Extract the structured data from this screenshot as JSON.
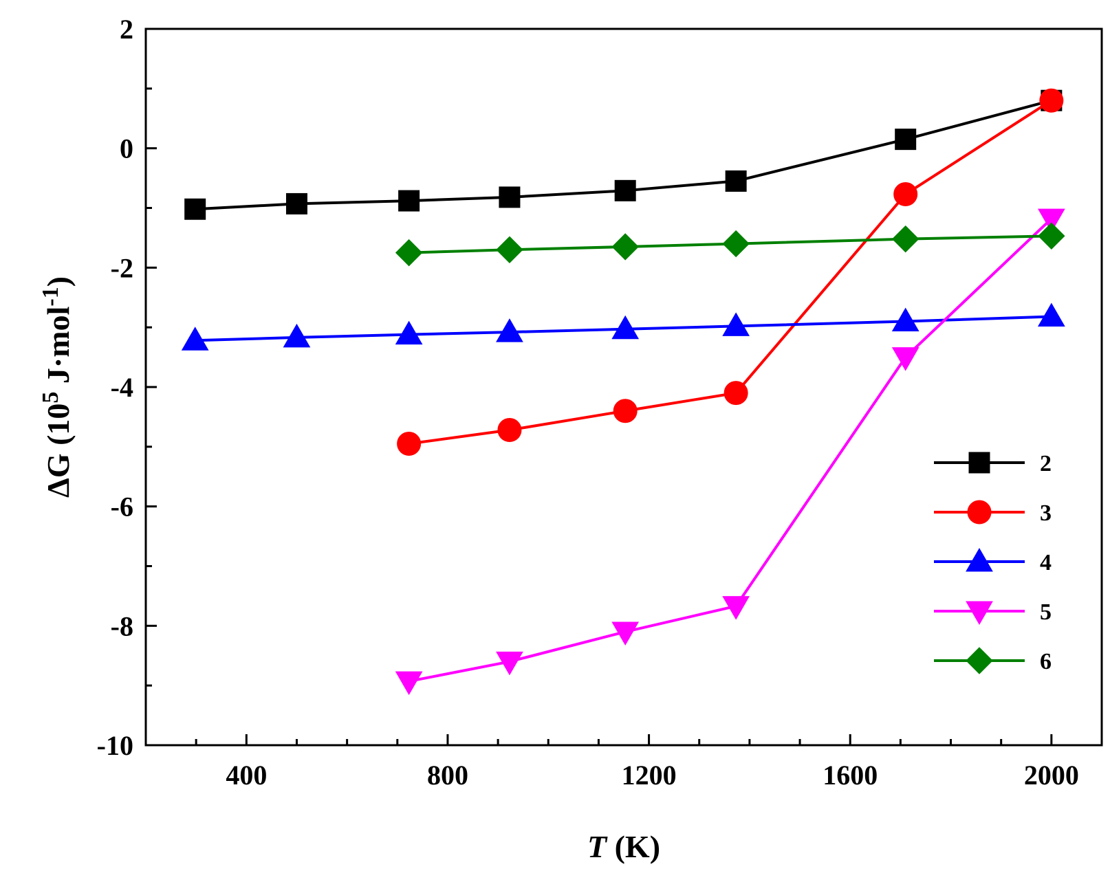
{
  "chart_data": {
    "type": "line",
    "xlabel": "T (K)",
    "xlabel_italic": "T",
    "xlabel_unit": " (K)",
    "ylabel_prefix": "ΔG (10",
    "ylabel_sup5": "5",
    "ylabel_mid": " J·mol",
    "ylabel_sup_neg1": "-1",
    "ylabel_suffix": ")",
    "xlim": [
      200,
      2100
    ],
    "ylim": [
      -10,
      2
    ],
    "x_ticks": [
      "400",
      "800",
      "1200",
      "1600",
      "2000"
    ],
    "y_ticks": [
      "2",
      "0",
      "-2",
      "-4",
      "-6",
      "-8",
      "-10"
    ],
    "legend_position": "right",
    "series": [
      {
        "name": "2",
        "color": "#000000",
        "marker": "square",
        "x": [
          298,
          500,
          723,
          923,
          1153,
          1373,
          1710,
          2000
        ],
        "y": [
          -1.02,
          -0.93,
          -0.88,
          -0.82,
          -0.71,
          -0.55,
          0.15,
          0.8
        ]
      },
      {
        "name": "3",
        "color": "#ff0000",
        "marker": "circle",
        "x": [
          723,
          923,
          1153,
          1373,
          1710,
          2000
        ],
        "y": [
          -4.95,
          -4.72,
          -4.4,
          -4.1,
          -0.77,
          0.8
        ]
      },
      {
        "name": "4",
        "color": "#0000ff",
        "marker": "triangle-up",
        "x": [
          298,
          500,
          723,
          923,
          1153,
          1373,
          1710,
          2000
        ],
        "y": [
          -3.22,
          -3.17,
          -3.12,
          -3.08,
          -3.03,
          -2.98,
          -2.9,
          -2.82
        ]
      },
      {
        "name": "5",
        "color": "#ff00ff",
        "marker": "triangle-down",
        "x": [
          723,
          923,
          1153,
          1373,
          1710,
          2000
        ],
        "y": [
          -8.93,
          -8.6,
          -8.1,
          -7.67,
          -3.5,
          -1.18
        ]
      },
      {
        "name": "6",
        "color": "#008000",
        "marker": "diamond",
        "x": [
          723,
          923,
          1153,
          1373,
          1710,
          2000
        ],
        "y": [
          -1.75,
          -1.7,
          -1.65,
          -1.6,
          -1.52,
          -1.47
        ]
      }
    ]
  }
}
